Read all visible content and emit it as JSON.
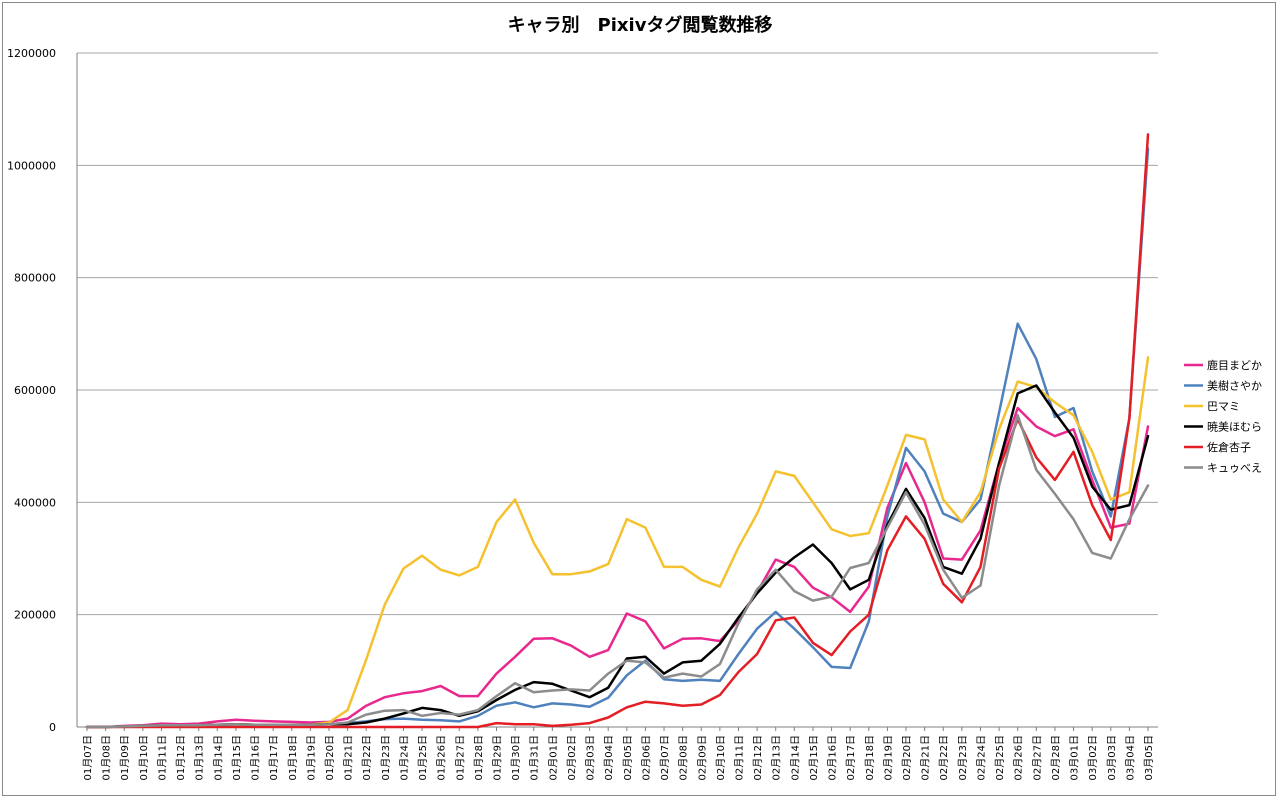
{
  "chart_data": {
    "type": "line",
    "title": "キャラ別　Pixivタグ閲覧数推移",
    "xlabel": "",
    "ylabel": "",
    "ylim": [
      0,
      1200000
    ],
    "yticks": [
      0,
      200000,
      400000,
      600000,
      800000,
      1000000,
      1200000
    ],
    "grid": true,
    "legend_position": "right",
    "categories": [
      "01月07日",
      "01月08日",
      "01月09日",
      "01月10日",
      "01月11日",
      "01月12日",
      "01月13日",
      "01月14日",
      "01月15日",
      "01月16日",
      "01月17日",
      "01月18日",
      "01月19日",
      "01月20日",
      "01月21日",
      "01月22日",
      "01月23日",
      "01月24日",
      "01月25日",
      "01月26日",
      "01月27日",
      "01月28日",
      "01月29日",
      "01月30日",
      "01月31日",
      "02月01日",
      "02月02日",
      "02月03日",
      "02月04日",
      "02月05日",
      "02月06日",
      "02月07日",
      "02月08日",
      "02月09日",
      "02月10日",
      "02月11日",
      "02月12日",
      "02月13日",
      "02月14日",
      "02月15日",
      "02月16日",
      "02月17日",
      "02月18日",
      "02月19日",
      "02月20日",
      "02月21日",
      "02月22日",
      "02月23日",
      "02月24日",
      "02月25日",
      "02月26日",
      "02月27日",
      "02月28日",
      "03月01日",
      "03月02日",
      "03月03日",
      "03月04日",
      "03月05日"
    ],
    "series": [
      {
        "name": "鹿目まどか",
        "color": "#e8288e",
        "values": [
          0,
          0,
          2000,
          3000,
          6000,
          5000,
          6000,
          10000,
          13000,
          11000,
          10000,
          9000,
          8000,
          9000,
          15000,
          38000,
          53000,
          60000,
          64000,
          73000,
          55000,
          55000,
          95000,
          125000,
          157000,
          158000,
          145000,
          125000,
          137000,
          202000,
          188000,
          140000,
          157000,
          158000,
          153000,
          190000,
          240000,
          298000,
          285000,
          248000,
          231000,
          205000,
          250000,
          390000,
          470000,
          400000,
          300000,
          298000,
          350000,
          470000,
          568000,
          535000,
          518000,
          530000,
          440000,
          355000,
          362000,
          535000
        ]
      },
      {
        "name": "美樹さやか",
        "color": "#4f81bd",
        "values": [
          0,
          0,
          1000,
          2000,
          3000,
          3000,
          3000,
          4000,
          5000,
          4000,
          4000,
          4000,
          4000,
          5000,
          7000,
          10000,
          14000,
          15000,
          13000,
          12000,
          10000,
          20000,
          38000,
          44000,
          35000,
          42000,
          40000,
          36000,
          52000,
          92000,
          118000,
          85000,
          82000,
          84000,
          82000,
          130000,
          175000,
          205000,
          175000,
          142000,
          107000,
          105000,
          188000,
          375000,
          497000,
          455000,
          380000,
          365000,
          405000,
          560000,
          718000,
          655000,
          552000,
          568000,
          455000,
          375000,
          550000,
          1030000
        ]
      },
      {
        "name": "巴マミ",
        "color": "#f5c12e",
        "values": [
          0,
          0,
          1000,
          2000,
          3000,
          3000,
          3000,
          4000,
          5000,
          4000,
          4000,
          4000,
          4000,
          8000,
          30000,
          120000,
          218000,
          282000,
          305000,
          280000,
          270000,
          285000,
          365000,
          405000,
          328000,
          272000,
          272000,
          277000,
          290000,
          370000,
          355000,
          285000,
          285000,
          262000,
          250000,
          320000,
          380000,
          455000,
          447000,
          400000,
          352000,
          340000,
          345000,
          430000,
          520000,
          512000,
          405000,
          365000,
          418000,
          530000,
          615000,
          605000,
          578000,
          555000,
          490000,
          405000,
          418000,
          658000
        ]
      },
      {
        "name": "暁美ほむら",
        "color": "#000000",
        "values": [
          0,
          0,
          1000,
          2000,
          3000,
          3000,
          3000,
          4000,
          5000,
          4000,
          4000,
          4000,
          4000,
          5000,
          5000,
          8000,
          15000,
          24000,
          34000,
          30000,
          20000,
          28000,
          48000,
          66000,
          80000,
          77000,
          65000,
          53000,
          70000,
          122000,
          125000,
          95000,
          115000,
          118000,
          148000,
          195000,
          238000,
          275000,
          302000,
          325000,
          292000,
          245000,
          262000,
          360000,
          424000,
          372000,
          285000,
          273000,
          335000,
          470000,
          594000,
          608000,
          560000,
          515000,
          428000,
          387000,
          395000,
          518000
        ]
      },
      {
        "name": "佐倉杏子",
        "color": "#e31e24",
        "values": [
          0,
          0,
          0,
          0,
          0,
          0,
          0,
          0,
          0,
          0,
          0,
          0,
          0,
          0,
          0,
          0,
          0,
          0,
          0,
          0,
          0,
          0,
          7000,
          5000,
          5000,
          2000,
          4000,
          7000,
          17000,
          35000,
          45000,
          42000,
          38000,
          40000,
          57000,
          98000,
          130000,
          190000,
          195000,
          150000,
          128000,
          170000,
          200000,
          315000,
          375000,
          335000,
          255000,
          222000,
          285000,
          460000,
          548000,
          480000,
          440000,
          490000,
          395000,
          333000,
          550000,
          1055000
        ]
      },
      {
        "name": "キュゥべえ",
        "color": "#8c8c8c",
        "values": [
          0,
          0,
          1000,
          2000,
          3000,
          3000,
          3000,
          4000,
          5000,
          4000,
          4000,
          4000,
          4000,
          5000,
          8000,
          22000,
          29000,
          30000,
          20000,
          25000,
          22000,
          30000,
          55000,
          78000,
          62000,
          65000,
          67000,
          65000,
          95000,
          118000,
          115000,
          88000,
          95000,
          90000,
          112000,
          185000,
          245000,
          280000,
          242000,
          225000,
          232000,
          283000,
          292000,
          355000,
          418000,
          360000,
          280000,
          230000,
          252000,
          430000,
          555000,
          458000,
          415000,
          370000,
          310000,
          300000,
          370000,
          430000
        ]
      }
    ]
  }
}
